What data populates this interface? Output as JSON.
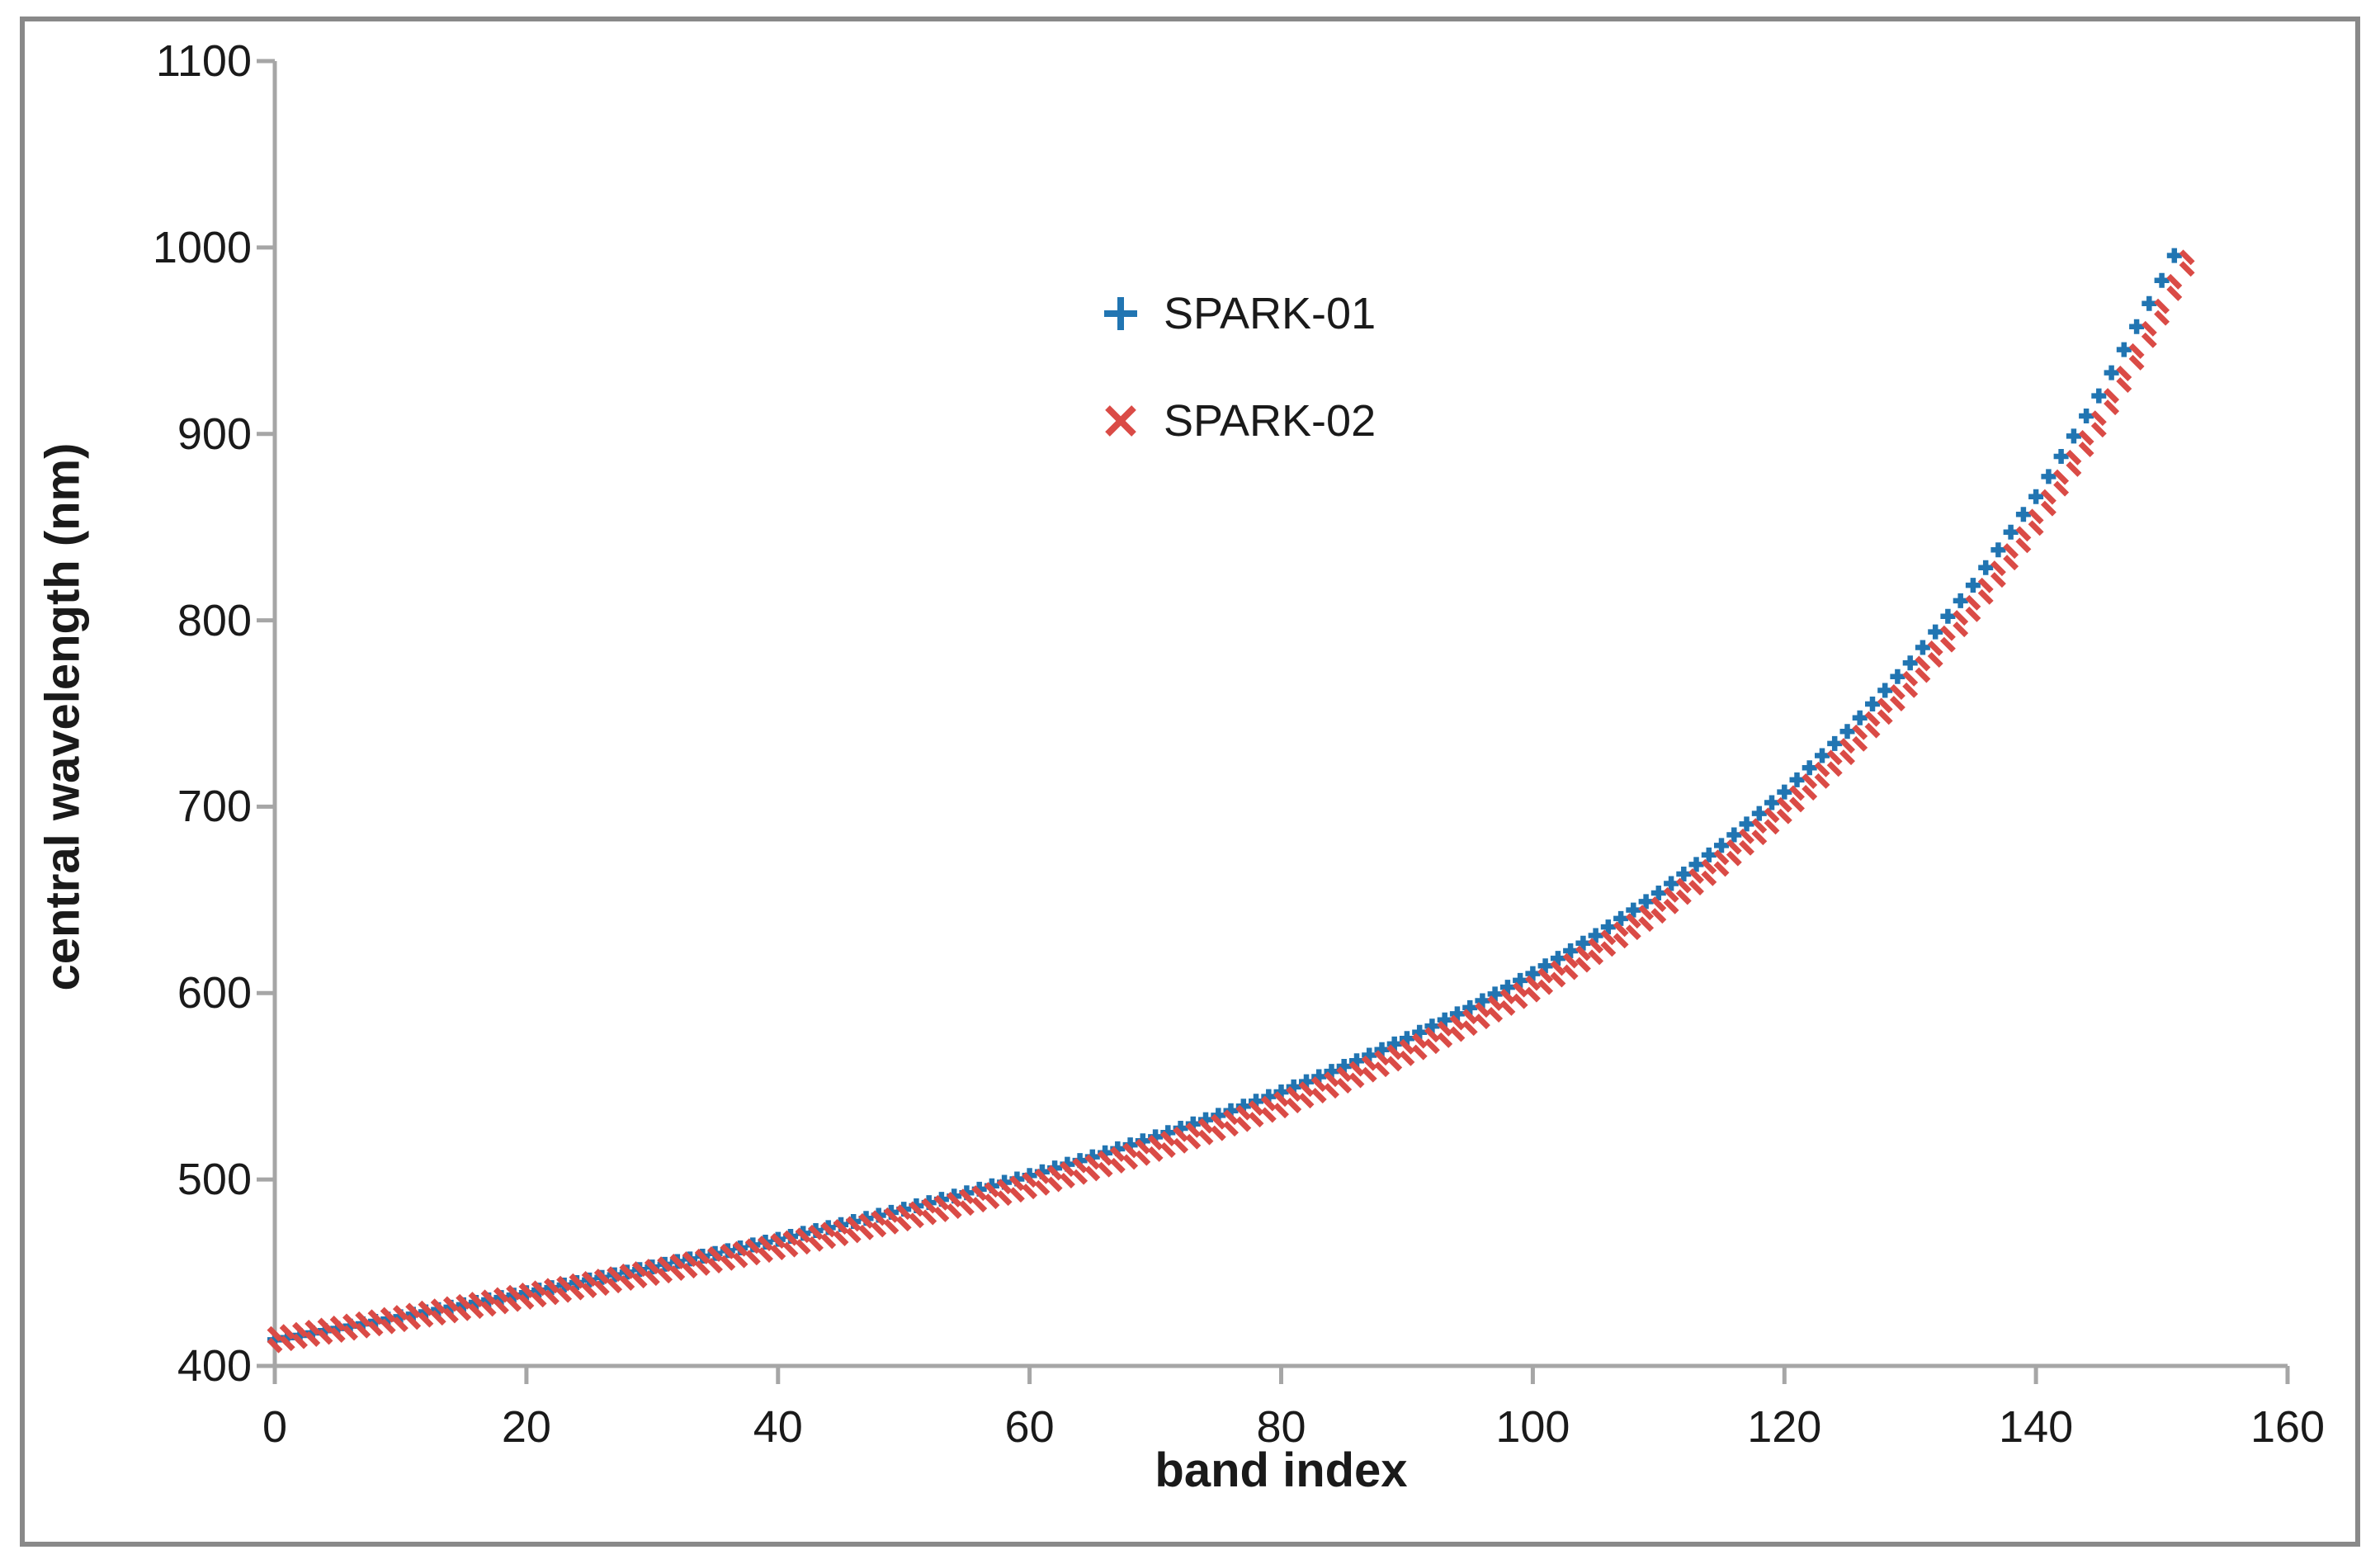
{
  "figure": {
    "background_color": "#ffffff",
    "frame_color": "#898989",
    "axis_color": "#a6a6a6",
    "text_color": "#1a1a1a"
  },
  "legend": {
    "items": [
      {
        "label": "SPARK-01",
        "marker": "plus-icon",
        "color": "#2175b2"
      },
      {
        "label": "SPARK-02",
        "marker": "x-icon",
        "color": "#da4b46"
      }
    ]
  },
  "chart_data": {
    "type": "scatter",
    "title": "",
    "xlabel": "band index",
    "ylabel": "central wavelength (nm)",
    "xlim": [
      0,
      160
    ],
    "ylim": [
      400,
      1100
    ],
    "x_ticks": [
      0,
      20,
      40,
      60,
      80,
      100,
      120,
      140,
      160
    ],
    "y_ticks": [
      400,
      500,
      600,
      700,
      800,
      900,
      1000,
      1100
    ],
    "grid": false,
    "legend_position": "inside upper-center",
    "series": [
      {
        "name": "SPARK-01",
        "marker": "plus",
        "color": "#2175b2",
        "x": [
          0,
          1,
          2,
          3,
          4,
          5,
          6,
          7,
          8,
          9,
          10,
          11,
          12,
          13,
          14,
          15,
          16,
          17,
          18,
          19,
          20,
          21,
          22,
          23,
          24,
          25,
          26,
          27,
          28,
          29,
          30,
          31,
          32,
          33,
          34,
          35,
          36,
          37,
          38,
          39,
          40,
          41,
          42,
          43,
          44,
          45,
          46,
          47,
          48,
          49,
          50,
          51,
          52,
          53,
          54,
          55,
          56,
          57,
          58,
          59,
          60,
          61,
          62,
          63,
          64,
          65,
          66,
          67,
          68,
          69,
          70,
          71,
          72,
          73,
          74,
          75,
          76,
          77,
          78,
          79,
          80,
          81,
          82,
          83,
          84,
          85,
          86,
          87,
          88,
          89,
          90,
          91,
          92,
          93,
          94,
          95,
          96,
          97,
          98,
          99,
          100,
          101,
          102,
          103,
          104,
          105,
          106,
          107,
          108,
          109,
          110,
          111,
          112,
          113,
          114,
          115,
          116,
          117,
          118,
          119,
          120,
          121,
          122,
          123,
          124,
          125,
          126,
          127,
          128,
          129,
          130,
          131,
          132,
          133,
          134,
          135,
          136,
          137,
          138,
          139,
          140,
          141,
          142,
          143,
          144,
          145,
          146,
          147,
          148,
          149,
          150,
          151
        ],
        "y": [
          414.0,
          415.2,
          416.4,
          417.7,
          418.9,
          420.1,
          421.4,
          422.6,
          423.9,
          425.1,
          426.4,
          427.7,
          429.0,
          430.2,
          431.5,
          432.8,
          434.1,
          435.4,
          436.7,
          438.0,
          439.3,
          440.7,
          442.0,
          443.4,
          444.7,
          446.1,
          447.5,
          448.9,
          450.3,
          451.7,
          453.1,
          454.5,
          456.0,
          457.4,
          458.9,
          460.3,
          461.8,
          463.3,
          464.9,
          466.4,
          467.9,
          469.5,
          471.1,
          472.6,
          474.2,
          475.8,
          477.5,
          479.1,
          480.8,
          482.4,
          484.1,
          485.9,
          487.6,
          489.4,
          491.1,
          492.9,
          494.8,
          496.6,
          498.5,
          500.3,
          502.2,
          504.2,
          506.2,
          508.2,
          510.2,
          512.2,
          514.3,
          516.5,
          518.6,
          520.8,
          522.9,
          525.2,
          527.5,
          529.8,
          532.1,
          534.4,
          536.9,
          539.4,
          542.0,
          544.5,
          547.0,
          549.7,
          552.5,
          555.2,
          558.0,
          560.7,
          563.7,
          566.7,
          569.7,
          572.7,
          575.7,
          579.0,
          582.3,
          585.6,
          588.9,
          592.2,
          595.9,
          599.5,
          603.2,
          606.8,
          610.5,
          614.6,
          618.7,
          622.7,
          626.8,
          630.9,
          635.5,
          640.0,
          644.6,
          649.1,
          653.7,
          658.8,
          663.9,
          669.0,
          674.1,
          679.2,
          684.9,
          690.7,
          696.4,
          702.2,
          707.9,
          714.4,
          720.9,
          727.4,
          733.9,
          740.4,
          747.7,
          755.1,
          762.4,
          769.8,
          777.1,
          785.4,
          793.8,
          802.1,
          810.5,
          818.8,
          828.3,
          837.8,
          847.3,
          856.8,
          866.3,
          877.1,
          887.9,
          898.8,
          909.6,
          920.4,
          932.8,
          945.2,
          957.5,
          969.9,
          982.3,
          995.7
        ]
      },
      {
        "name": "SPARK-02",
        "marker": "x",
        "color": "#da4b46",
        "x": [
          0,
          1,
          2,
          3,
          4,
          5,
          6,
          7,
          8,
          9,
          10,
          11,
          12,
          13,
          14,
          15,
          16,
          17,
          18,
          19,
          20,
          21,
          22,
          23,
          24,
          25,
          26,
          27,
          28,
          29,
          30,
          31,
          32,
          33,
          34,
          35,
          36,
          37,
          38,
          39,
          40,
          41,
          42,
          43,
          44,
          45,
          46,
          47,
          48,
          49,
          50,
          51,
          52,
          53,
          54,
          55,
          56,
          57,
          58,
          59,
          60,
          61,
          62,
          63,
          64,
          65,
          66,
          67,
          68,
          69,
          70,
          71,
          72,
          73,
          74,
          75,
          76,
          77,
          78,
          79,
          80,
          81,
          82,
          83,
          84,
          85,
          86,
          87,
          88,
          89,
          90,
          91,
          92,
          93,
          94,
          95,
          96,
          97,
          98,
          99,
          100,
          101,
          102,
          103,
          104,
          105,
          106,
          107,
          108,
          109,
          110,
          111,
          112,
          113,
          114,
          115,
          116,
          117,
          118,
          119,
          120,
          121,
          122,
          123,
          124,
          125,
          126,
          127,
          128,
          129,
          130,
          131,
          132,
          133,
          134,
          135,
          136,
          137,
          138,
          139,
          140,
          141,
          142,
          143,
          144,
          145,
          146,
          147,
          148,
          149,
          150,
          151,
          152
        ],
        "y": [
          411.0,
          412.1,
          413.2,
          414.4,
          415.5,
          416.6,
          417.7,
          418.9,
          420.0,
          421.2,
          422.3,
          423.5,
          424.7,
          425.8,
          427.0,
          428.2,
          429.4,
          430.6,
          431.9,
          433.1,
          434.3,
          435.5,
          436.8,
          438.0,
          439.3,
          440.5,
          441.8,
          443.1,
          444.5,
          445.8,
          447.1,
          448.4,
          449.8,
          451.1,
          452.5,
          453.8,
          455.2,
          456.6,
          458.1,
          459.5,
          460.9,
          462.4,
          463.9,
          465.4,
          466.9,
          468.4,
          470.0,
          471.6,
          473.1,
          474.7,
          476.3,
          478.0,
          479.7,
          481.3,
          483.0,
          484.7,
          486.5,
          488.3,
          490.0,
          491.8,
          493.6,
          495.5,
          497.4,
          499.4,
          501.3,
          503.2,
          505.3,
          507.4,
          509.4,
          511.5,
          513.6,
          515.8,
          518.1,
          520.3,
          522.6,
          524.8,
          527.2,
          529.7,
          532.1,
          534.6,
          537.0,
          539.7,
          542.3,
          545.0,
          547.6,
          550.3,
          553.2,
          556.2,
          559.1,
          562.1,
          565.0,
          568.2,
          571.5,
          574.7,
          578.0,
          581.2,
          584.8,
          588.4,
          592.0,
          595.6,
          599.2,
          603.2,
          607.2,
          611.2,
          615.2,
          619.2,
          623.7,
          628.1,
          632.6,
          637.0,
          641.5,
          646.5,
          651.5,
          656.6,
          661.6,
          666.6,
          672.2,
          677.9,
          683.5,
          689.2,
          694.8,
          701.1,
          707.5,
          713.8,
          720.2,
          726.5,
          733.7,
          740.9,
          748.1,
          755.3,
          762.5,
          770.6,
          778.8,
          786.9,
          795.1,
          803.2,
          812.5,
          821.7,
          831.0,
          840.2,
          849.5,
          860.0,
          870.6,
          881.1,
          891.7,
          902.2,
          914.2,
          926.2,
          938.2,
          950.2,
          962.2,
          975.4,
          988.5
        ]
      }
    ]
  }
}
